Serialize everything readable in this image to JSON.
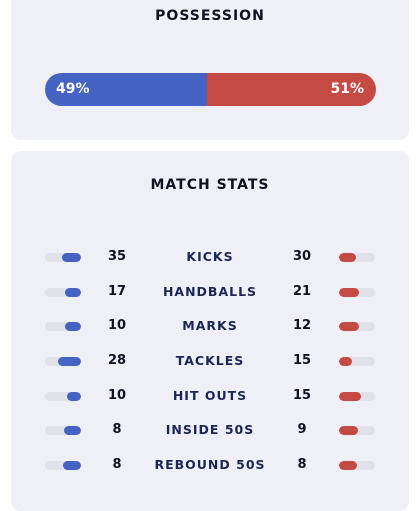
{
  "possession": {
    "title": "POSSESSION",
    "home_value": "49%",
    "away_value": "51%",
    "home_share": 49,
    "colors": {
      "home": "#4463c2",
      "away": "#c64a44"
    }
  },
  "match_stats": {
    "title": "MATCH STATS",
    "rows": [
      {
        "label": "KICKS",
        "home": "35",
        "away": "30"
      },
      {
        "label": "HANDBALLS",
        "home": "17",
        "away": "21"
      },
      {
        "label": "MARKS",
        "home": "10",
        "away": "12"
      },
      {
        "label": "TACKLES",
        "home": "28",
        "away": "15"
      },
      {
        "label": "HIT OUTS",
        "home": "10",
        "away": "15"
      },
      {
        "label": "INSIDE 50S",
        "home": "8",
        "away": "9"
      },
      {
        "label": "REBOUND 50S",
        "home": "8",
        "away": "8"
      }
    ]
  }
}
